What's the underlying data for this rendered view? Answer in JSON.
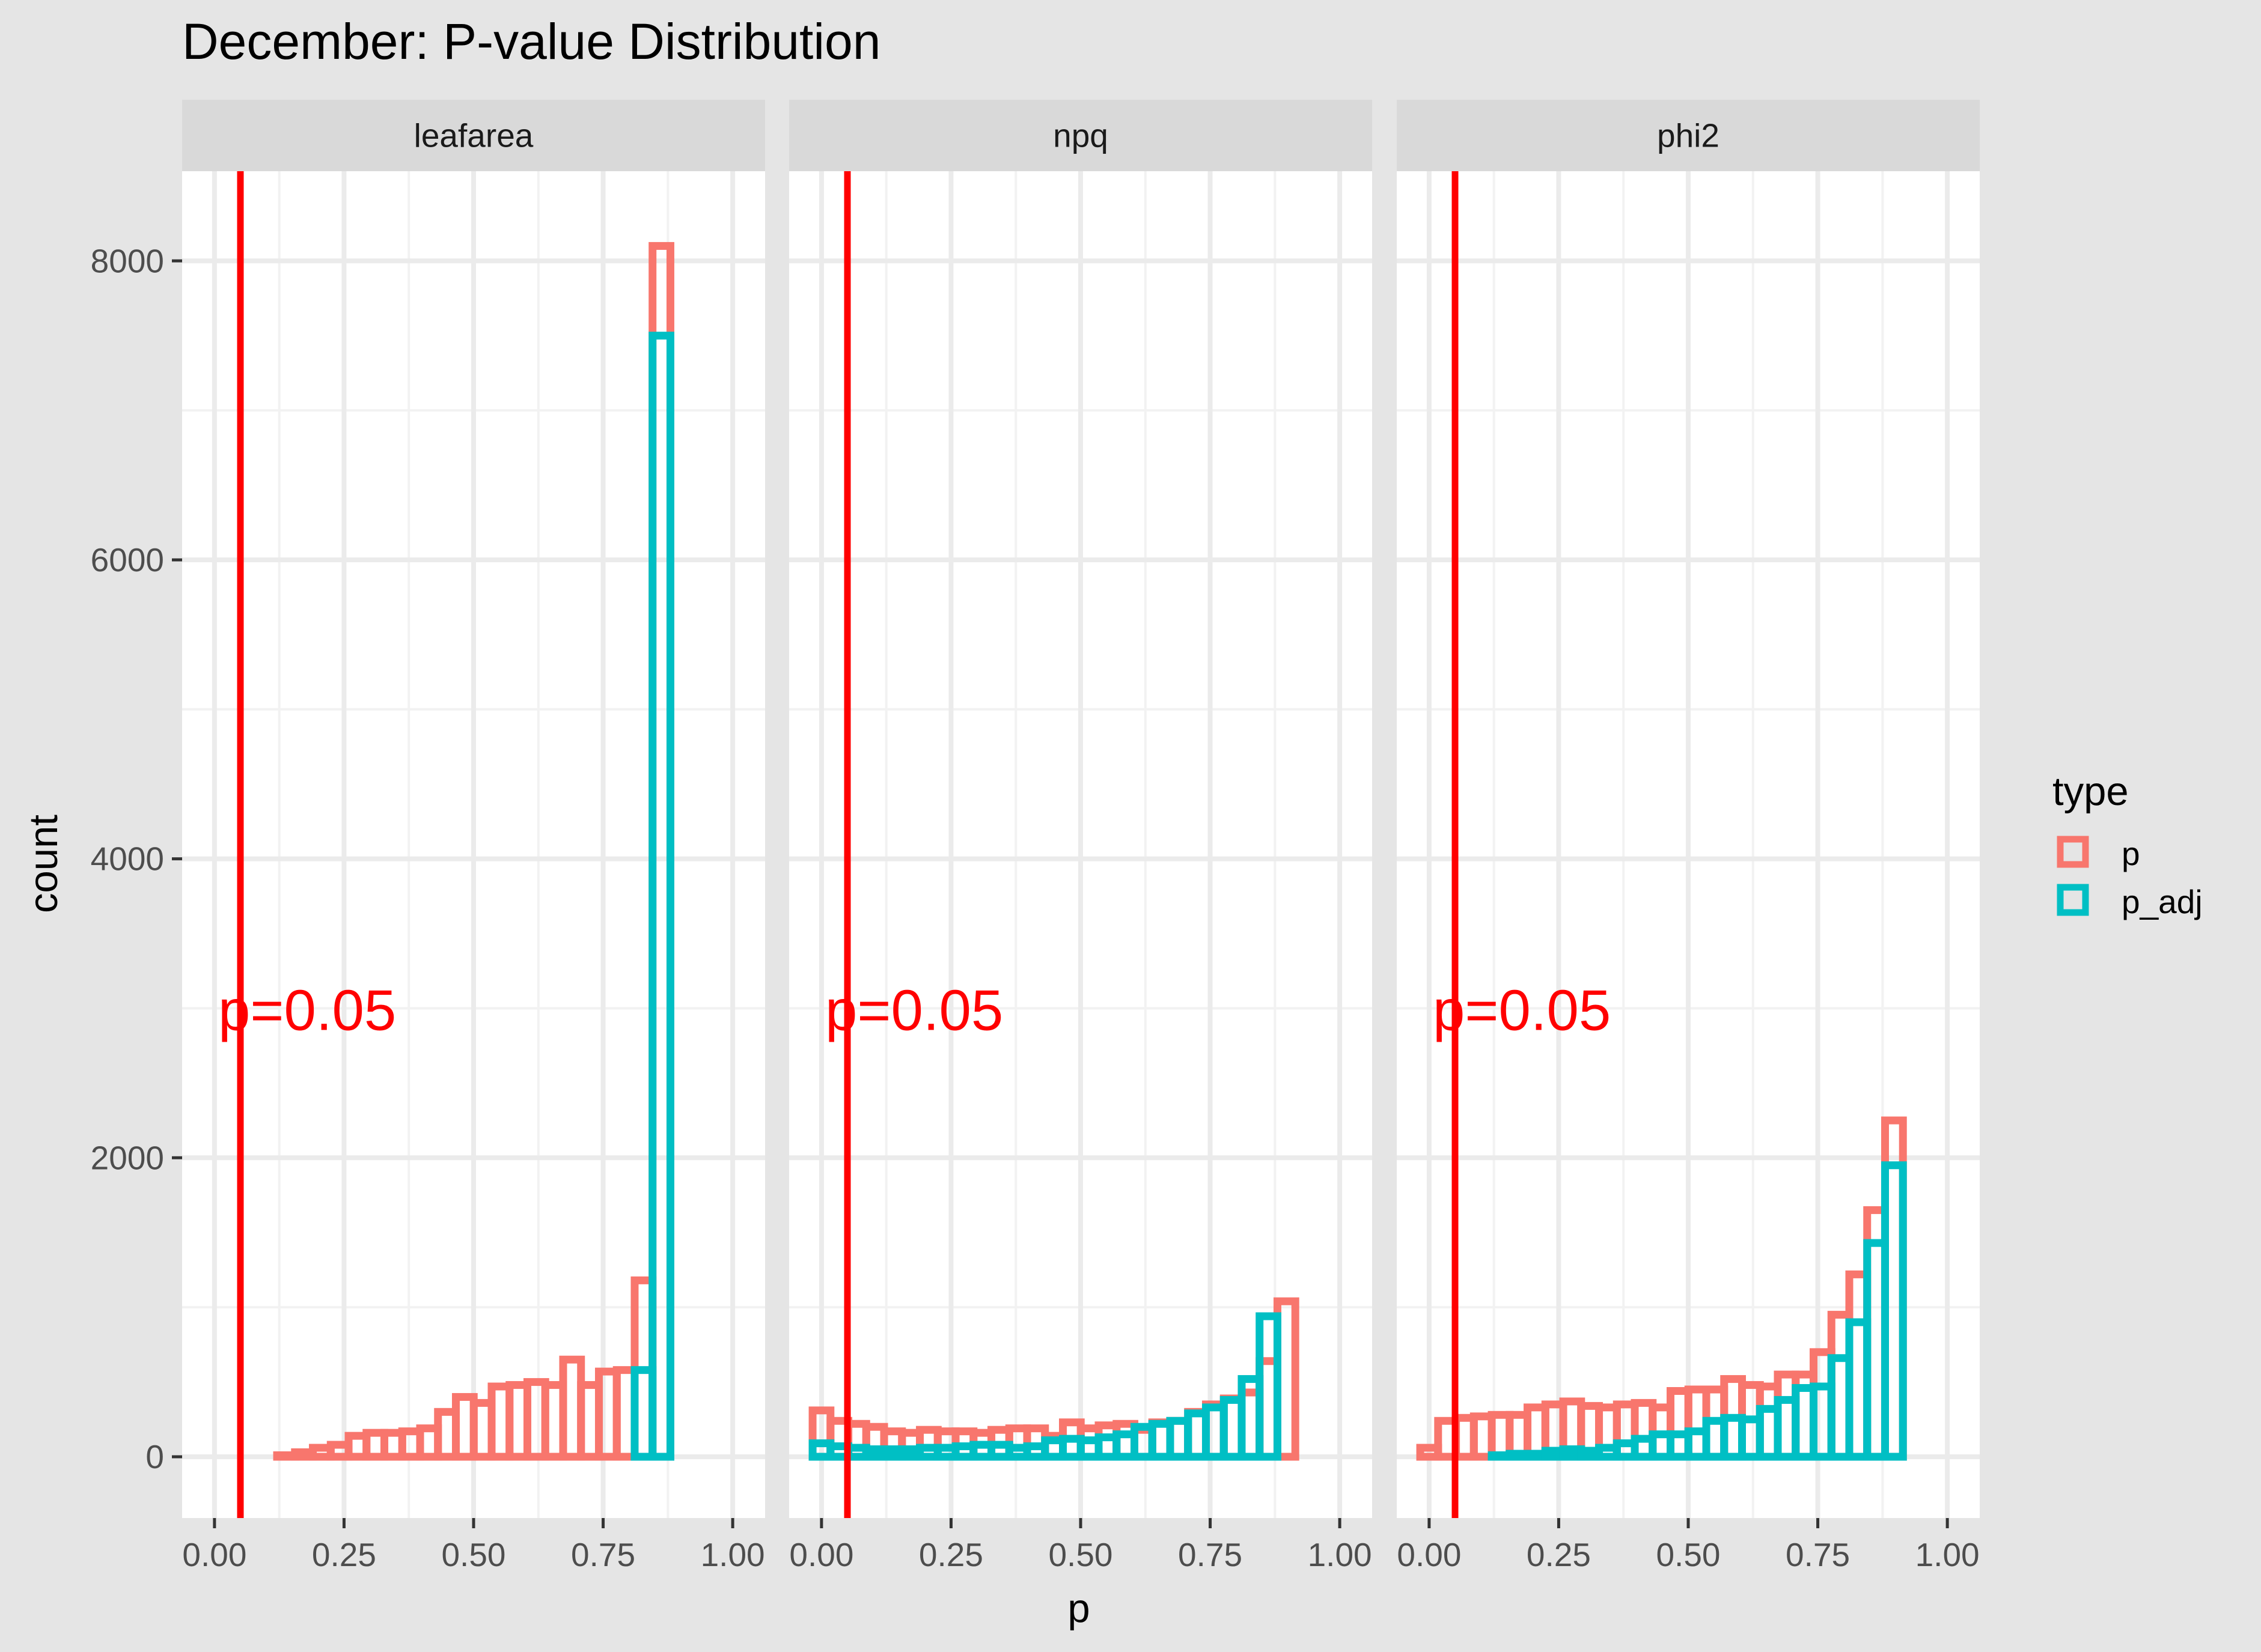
{
  "chart_data": {
    "type": "bar",
    "subtype": "histogram (step outline), faceted",
    "title": "December: P-value Distribution",
    "xlabel": "p",
    "ylabel": "count",
    "x_ticks": [
      "0.00",
      "0.25",
      "0.50",
      "0.75",
      "1.00"
    ],
    "x_tick_values": [
      0,
      0.25,
      0.5,
      0.75,
      1.0
    ],
    "y_ticks": [
      "0",
      "2000",
      "4000",
      "6000",
      "8000"
    ],
    "y_tick_values": [
      0,
      2000,
      4000,
      6000,
      8000
    ],
    "xlim": [
      -0.0625,
      1.0625
    ],
    "ylim": [
      -410,
      8600
    ],
    "grid": true,
    "legend": {
      "title": "type",
      "placement": "right",
      "entries": [
        {
          "label": "p",
          "color": "#F8766D"
        },
        {
          "label": "p_adj",
          "color": "#00BFC4"
        }
      ]
    },
    "bins": {
      "count": 30,
      "start": -0.0172,
      "width": 0.0345
    },
    "reference_line": {
      "x": 0.05,
      "color": "#FF0000",
      "label": "p=0.05",
      "label_y": 3000
    },
    "facets": [
      {
        "name": "leafarea",
        "series": [
          {
            "name": "p",
            "values": [
              0,
              0,
              0,
              0,
              10,
              30,
              60,
              80,
              140,
              160,
              160,
              170,
              190,
              300,
              400,
              360,
              470,
              480,
              500,
              480,
              650,
              480,
              570,
              580,
              1180,
              8100,
              0,
              0,
              0,
              0
            ]
          },
          {
            "name": "p_adj",
            "values": [
              0,
              0,
              0,
              0,
              0,
              0,
              0,
              0,
              0,
              0,
              0,
              0,
              0,
              0,
              0,
              0,
              0,
              0,
              0,
              0,
              0,
              0,
              0,
              0,
              580,
              7500,
              0,
              0,
              0,
              0
            ]
          }
        ]
      },
      {
        "name": "npq",
        "series": [
          {
            "name": "p",
            "values": [
              310,
              240,
              220,
              200,
              170,
              160,
              180,
              170,
              170,
              160,
              180,
              190,
              190,
              140,
              230,
              190,
              210,
              220,
              180,
              230,
              240,
              300,
              350,
              390,
              430,
              640,
              1040,
              0,
              0,
              0
            ]
          },
          {
            "name": "p_adj",
            "values": [
              90,
              70,
              60,
              50,
              50,
              50,
              60,
              60,
              70,
              80,
              80,
              60,
              70,
              110,
              120,
              110,
              130,
              150,
              200,
              220,
              240,
              290,
              330,
              380,
              520,
              940,
              0,
              0,
              0,
              0
            ]
          }
        ]
      },
      {
        "name": "phi2",
        "series": [
          {
            "name": "p",
            "values": [
              60,
              240,
              260,
              270,
              280,
              280,
              330,
              350,
              370,
              340,
              330,
              350,
              360,
              330,
              440,
              450,
              450,
              520,
              480,
              470,
              550,
              550,
              700,
              950,
              1220,
              1650,
              2250,
              0,
              0,
              0
            ]
          },
          {
            "name": "p_adj",
            "values": [
              0,
              0,
              0,
              0,
              10,
              20,
              20,
              40,
              50,
              40,
              60,
              90,
              120,
              150,
              150,
              170,
              240,
              260,
              250,
              320,
              380,
              460,
              470,
              660,
              900,
              1430,
              1950,
              0,
              0,
              0
            ]
          }
        ]
      }
    ]
  }
}
